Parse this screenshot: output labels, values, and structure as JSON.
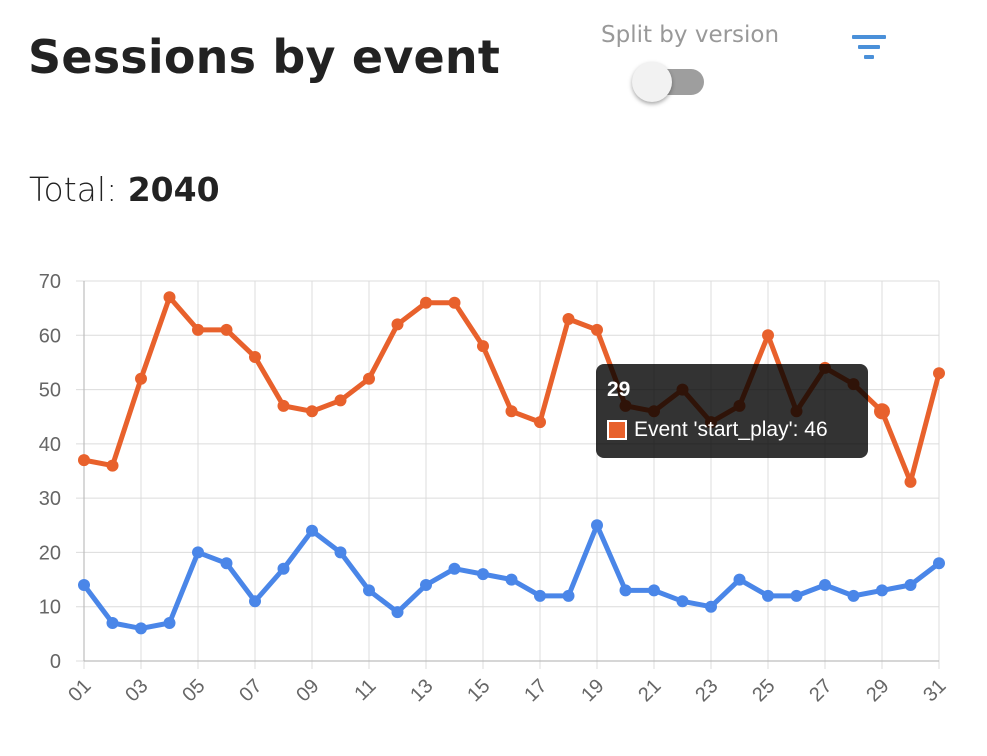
{
  "header": {
    "title": "Sessions by event",
    "split_label": "Split by version",
    "split_enabled": false,
    "filter_icon": "filter-icon"
  },
  "summary": {
    "total_label": "Total:",
    "total_value": "2040"
  },
  "colors": {
    "start_play": "#E8612C",
    "series2": "#4A86E8",
    "accent": "#4A90D9"
  },
  "tooltip": {
    "title": "29",
    "text": "Event 'start_play': 46"
  },
  "chart_data": {
    "type": "line",
    "x": [
      "01",
      "02",
      "03",
      "04",
      "05",
      "06",
      "07",
      "08",
      "09",
      "10",
      "11",
      "12",
      "13",
      "14",
      "15",
      "16",
      "17",
      "18",
      "19",
      "20",
      "21",
      "22",
      "23",
      "24",
      "25",
      "26",
      "27",
      "28",
      "29",
      "30",
      "31"
    ],
    "x_tick_labels": [
      "01",
      "03",
      "05",
      "07",
      "09",
      "11",
      "13",
      "15",
      "17",
      "19",
      "21",
      "23",
      "25",
      "27",
      "29",
      "31"
    ],
    "y_ticks": [
      0,
      10,
      20,
      30,
      40,
      50,
      60,
      70
    ],
    "ylim": [
      0,
      70
    ],
    "grid": true,
    "legend": "none",
    "series": [
      {
        "name": "Event 'start_play'",
        "color": "#E8612C",
        "values": [
          37,
          36,
          52,
          67,
          61,
          61,
          56,
          47,
          46,
          48,
          52,
          62,
          66,
          66,
          58,
          46,
          44,
          63,
          61,
          47,
          46,
          50,
          44,
          47,
          60,
          46,
          54,
          51,
          46,
          33,
          53
        ]
      },
      {
        "color": "#4A86E8",
        "values": [
          14,
          7,
          6,
          7,
          20,
          18,
          11,
          17,
          24,
          20,
          13,
          9,
          14,
          17,
          16,
          15,
          12,
          12,
          25,
          13,
          13,
          11,
          10,
          15,
          12,
          12,
          14,
          12,
          13,
          14,
          18
        ]
      }
    ]
  }
}
